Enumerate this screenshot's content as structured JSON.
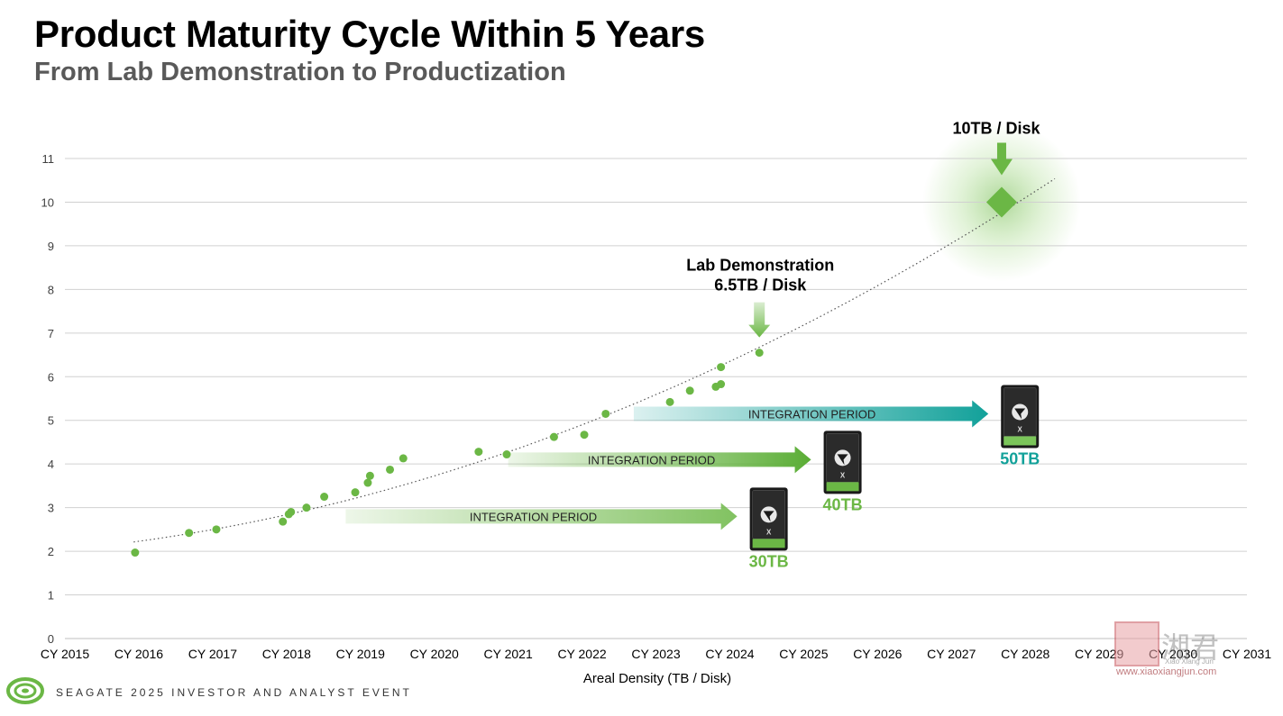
{
  "header": {
    "title": "Product Maturity Cycle Within 5 Years",
    "subtitle": "From Lab Demonstration to Productization"
  },
  "footer": {
    "event_text": "SEAGATE 2025 INVESTOR AND ANALYST EVENT",
    "logo_icon": "seagate-swirl-icon"
  },
  "watermark": {
    "chars": "湘君",
    "small": "Xiao Xiang Jun",
    "url": "www.xiaoxiangjun.com"
  },
  "colors": {
    "green": "#6bb745",
    "teal": "#12a19a",
    "grid": "#d0d0d0",
    "text": "#404040"
  },
  "chart_data": {
    "type": "scatter",
    "xlabel": "Areal Density (TB / Disk)",
    "ylabel": "",
    "xlim": [
      2015,
      2031
    ],
    "ylim": [
      0,
      11
    ],
    "x_ticks": [
      "CY 2015",
      "CY 2016",
      "CY 2017",
      "CY 2018",
      "CY 2019",
      "CY 2020",
      "CY 2021",
      "CY 2022",
      "CY 2023",
      "CY 2024",
      "CY 2025",
      "CY 2026",
      "CY 2027",
      "CY 2028",
      "CY 2029",
      "CY 2030",
      "CY 2031"
    ],
    "y_ticks": [
      0,
      1,
      2,
      3,
      4,
      5,
      6,
      7,
      8,
      9,
      10,
      11
    ],
    "grid": true,
    "series": [
      {
        "points": [
          [
            2015.95,
            1.97
          ],
          [
            2016.68,
            2.42
          ],
          [
            2017.05,
            2.5
          ],
          [
            2017.95,
            2.68
          ],
          [
            2018.03,
            2.85
          ],
          [
            2018.06,
            2.9
          ],
          [
            2018.27,
            3.0
          ],
          [
            2018.51,
            3.25
          ],
          [
            2018.93,
            3.35
          ],
          [
            2019.1,
            3.57
          ],
          [
            2019.13,
            3.73
          ],
          [
            2019.4,
            3.87
          ],
          [
            2019.58,
            4.13
          ],
          [
            2020.6,
            4.28
          ],
          [
            2020.98,
            4.22
          ],
          [
            2021.62,
            4.62
          ],
          [
            2022.03,
            4.67
          ],
          [
            2022.32,
            5.15
          ],
          [
            2023.19,
            5.42
          ],
          [
            2023.46,
            5.68
          ],
          [
            2023.81,
            5.77
          ],
          [
            2023.88,
            5.83
          ],
          [
            2023.88,
            6.22
          ],
          [
            2024.4,
            6.55
          ]
        ]
      }
    ],
    "trendline": {
      "style": "dotted",
      "x_range": [
        2015.93,
        2028.4
      ]
    },
    "highlight": {
      "x": 2027.68,
      "y": 10.0,
      "label": "10TB / Disk",
      "shape": "diamond"
    },
    "annotations": [
      {
        "text": "Lab Demonstration",
        "text2": "6.5TB / Disk",
        "x": 2024.4,
        "y": 6.55
      }
    ],
    "integration_periods": [
      {
        "label": "INTEGRATION PERIOD",
        "x_start": 2018.8,
        "x_end": 2024.1,
        "y": 2.8,
        "product": "30TB",
        "color": "green"
      },
      {
        "label": "INTEGRATION PERIOD",
        "x_start": 2021.0,
        "x_end": 2025.1,
        "y": 4.1,
        "product": "40TB",
        "color": "green"
      },
      {
        "label": "INTEGRATION PERIOD",
        "x_start": 2022.7,
        "x_end": 2027.5,
        "y": 5.15,
        "product": "50TB",
        "color": "teal"
      }
    ]
  }
}
